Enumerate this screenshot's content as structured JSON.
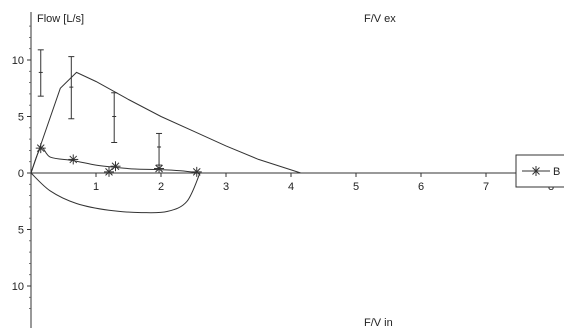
{
  "chart_data": {
    "type": "line",
    "title_top": "F/V ex",
    "title_bottom": "F/V in",
    "ylabel": "Flow [L/s]",
    "xlabel": "",
    "x_ticks": [
      "1",
      "2",
      "3",
      "4",
      "5",
      "6",
      "7",
      "8"
    ],
    "y_ticks_upper": [
      "5",
      "10"
    ],
    "y_ticks_zero": "0",
    "y_ticks_lower": [
      "5",
      "10"
    ],
    "xlim": [
      0,
      8.1
    ],
    "ylim": [
      -12.5,
      13.5
    ],
    "grid": false,
    "legend": {
      "position": "right",
      "entries": [
        {
          "label": "B",
          "marker": "asterisk"
        }
      ]
    },
    "series": [
      {
        "role": "predicted expiratory curve",
        "x": [
          0,
          0.45,
          0.7,
          1.0,
          1.5,
          2.0,
          2.5,
          3.0,
          3.5,
          4.15
        ],
        "y": [
          0,
          7.5,
          8.9,
          8.1,
          6.5,
          5.0,
          3.7,
          2.4,
          1.2,
          0
        ]
      },
      {
        "role": "predicted values with range",
        "x": [
          0.15,
          0.62,
          1.28,
          1.97
        ],
        "y": [
          8.9,
          7.6,
          5.0,
          2.3
        ],
        "low": [
          6.8,
          4.8,
          2.7,
          0.7
        ],
        "high": [
          10.9,
          10.3,
          7.1,
          3.5
        ]
      },
      {
        "name": "B",
        "role": "measured expiratory curve",
        "x": [
          0,
          0.15,
          0.3,
          0.65,
          1.0,
          1.3,
          1.6,
          1.97,
          2.3,
          2.6
        ],
        "y": [
          0,
          2.2,
          1.4,
          1.1,
          0.7,
          0.5,
          0.35,
          0.3,
          0.2,
          0
        ],
        "markers_x": [
          0.15,
          0.65,
          1.2,
          1.3,
          1.97,
          2.55
        ],
        "markers_y": [
          2.2,
          1.2,
          0.1,
          0.6,
          0.4,
          0.1
        ]
      },
      {
        "name": "B",
        "role": "measured inspiratory curve",
        "x": [
          0,
          0.3,
          0.7,
          1.2,
          1.7,
          2.1,
          2.4,
          2.6
        ],
        "y": [
          0,
          -1.6,
          -2.7,
          -3.3,
          -3.5,
          -3.4,
          -2.5,
          0
        ]
      }
    ]
  }
}
